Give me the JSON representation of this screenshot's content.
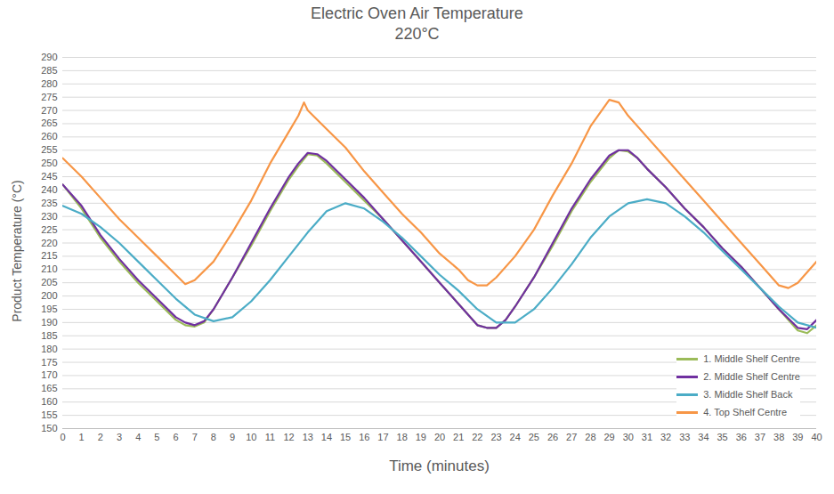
{
  "chart_data": {
    "type": "line",
    "title": "Electric Oven Air Temperature",
    "subtitle": "220°C",
    "x_label": "Time (minutes)",
    "y_label": "Product Temperature (°C)",
    "xlim": [
      0,
      40
    ],
    "xticks": [
      0,
      1,
      2,
      3,
      4,
      5,
      6,
      7,
      8,
      9,
      10,
      11,
      12,
      13,
      14,
      15,
      16,
      17,
      18,
      19,
      20,
      21,
      22,
      23,
      24,
      25,
      26,
      27,
      28,
      29,
      30,
      31,
      32,
      33,
      34,
      35,
      36,
      37,
      38,
      39,
      40
    ],
    "ylim": [
      150,
      290
    ],
    "yticks": [
      150,
      155,
      160,
      165,
      170,
      175,
      180,
      185,
      190,
      195,
      200,
      205,
      210,
      215,
      220,
      225,
      230,
      235,
      240,
      245,
      250,
      255,
      260,
      265,
      270,
      275,
      280,
      285,
      290
    ],
    "grid": true,
    "legend": "bottom-right",
    "series": [
      {
        "name": "1. Middle Shelf Centre",
        "color": "#9bbb59",
        "x": [
          0,
          1,
          2,
          3,
          4,
          5,
          6,
          6.5,
          7,
          7.5,
          8,
          9,
          10,
          11,
          12,
          12.5,
          13,
          13.5,
          14,
          15,
          16,
          17,
          18,
          19,
          20,
          21,
          22,
          22.5,
          23,
          23.5,
          24,
          25,
          26,
          27,
          28,
          29,
          29.5,
          30,
          30.5,
          31,
          32,
          33,
          34,
          35,
          36,
          37,
          38,
          39,
          39.5,
          40
        ],
        "values": [
          242,
          233,
          222,
          213,
          205,
          198,
          191,
          189,
          188.5,
          190,
          195,
          207,
          219,
          232,
          244,
          249,
          253.5,
          253,
          250,
          243,
          236,
          229,
          221,
          213,
          205,
          197,
          189,
          188,
          188,
          191,
          196,
          207,
          219,
          232,
          243,
          252,
          255,
          254.5,
          252,
          248,
          241,
          233,
          226,
          218,
          211,
          203,
          195,
          187,
          186,
          189
        ]
      },
      {
        "name": "2. Middle Shelf Centre",
        "color": "#7030a0",
        "x": [
          0,
          1,
          2,
          3,
          4,
          5,
          6,
          6.5,
          7,
          7.5,
          8,
          9,
          10,
          11,
          12,
          12.5,
          13,
          13.5,
          14,
          15,
          16,
          17,
          18,
          19,
          20,
          21,
          22,
          22.5,
          23,
          23.5,
          24,
          25,
          26,
          27,
          28,
          29,
          29.5,
          30,
          30.5,
          31,
          32,
          33,
          34,
          35,
          36,
          37,
          38,
          39,
          39.5,
          40
        ],
        "values": [
          242,
          234,
          223,
          214,
          206,
          199,
          192,
          190,
          189,
          190.5,
          195,
          207,
          220,
          233,
          245,
          250,
          254,
          253.5,
          251,
          244,
          237,
          229,
          221,
          213,
          205,
          197,
          189,
          188,
          188,
          191,
          196,
          207,
          220,
          233,
          244,
          253,
          255,
          255,
          252,
          248,
          241,
          233,
          226,
          218,
          211,
          203,
          195,
          188,
          187.5,
          191
        ]
      },
      {
        "name": "3. Middle Shelf Back",
        "color": "#4bacc6",
        "x": [
          0,
          1,
          2,
          3,
          4,
          5,
          6,
          7,
          8,
          9,
          10,
          11,
          12,
          13,
          14,
          15,
          16,
          17,
          18,
          19,
          20,
          21,
          22,
          23,
          24,
          25,
          26,
          27,
          28,
          29,
          30,
          31,
          32,
          33,
          34,
          35,
          36,
          37,
          38,
          39,
          40
        ],
        "values": [
          234,
          231,
          226,
          220,
          213,
          206,
          199,
          193,
          190.5,
          192,
          198,
          206,
          215,
          224,
          232,
          235,
          233,
          228,
          222,
          215,
          208,
          202,
          195,
          190,
          190,
          195,
          203,
          212,
          222,
          230,
          235,
          236.5,
          235,
          230,
          224,
          217,
          210,
          203,
          196,
          190,
          188
        ]
      },
      {
        "name": "4. Top Shelf Centre",
        "color": "#f79646",
        "x": [
          0,
          1,
          2,
          3,
          4,
          5,
          6,
          6.5,
          7,
          8,
          9,
          10,
          11,
          12,
          12.5,
          12.8,
          13,
          14,
          15,
          16,
          17,
          18,
          19,
          20,
          21,
          21.5,
          22,
          22.5,
          23,
          24,
          25,
          26,
          27,
          28,
          29,
          29.5,
          30,
          31,
          32,
          33,
          34,
          35,
          36,
          37,
          38,
          38.5,
          39,
          40
        ],
        "values": [
          252,
          245,
          237,
          229,
          222,
          215,
          208,
          204.5,
          206,
          213,
          224,
          236,
          250,
          262,
          268,
          273,
          270,
          263,
          256,
          247,
          239,
          231,
          224,
          216,
          210,
          206,
          204,
          204,
          207,
          215,
          225,
          238,
          250,
          264,
          274,
          273,
          268,
          260,
          252,
          244,
          236,
          228,
          220,
          212,
          204,
          203,
          205,
          213
        ]
      }
    ]
  }
}
